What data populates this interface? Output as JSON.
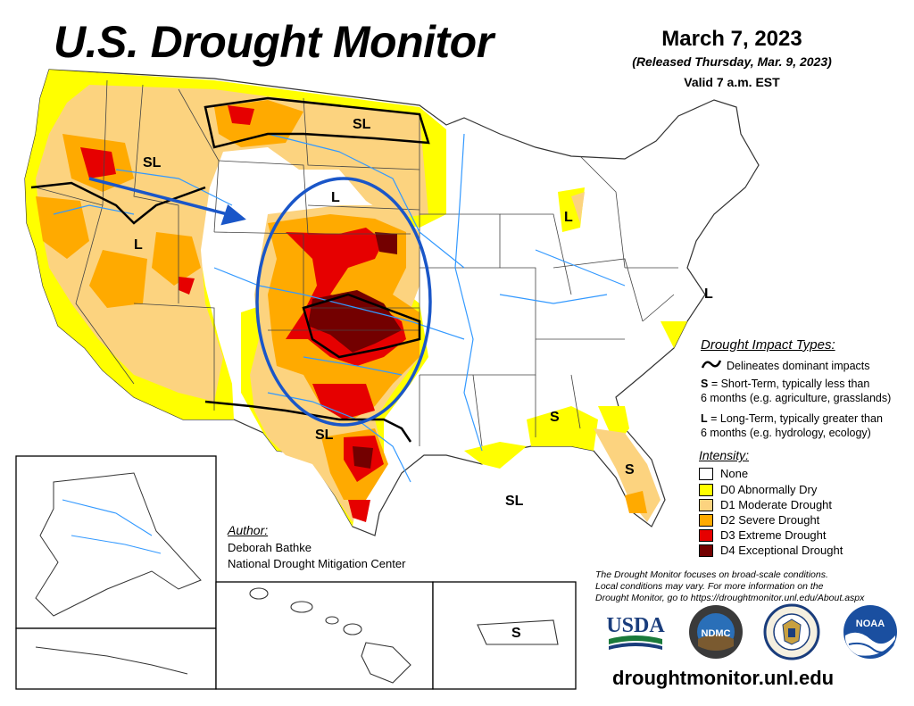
{
  "header": {
    "title": "U.S. Drought Monitor",
    "date": "March 7, 2023",
    "released": "(Released Thursday, Mar. 9, 2023)",
    "valid": "Valid 7 a.m. EST"
  },
  "impact_types": {
    "heading": "Drought Impact Types:",
    "delineates": "Delineates dominant impacts",
    "short_code": "S",
    "short_text": " = Short-Term, typically less than",
    "short_text2": "6 months (e.g. agriculture, grasslands)",
    "long_code": "L",
    "long_text": " = Long-Term, typically greater than",
    "long_text2": "6 months (e.g. hydrology, ecology)"
  },
  "intensity": {
    "heading": "Intensity:",
    "levels": [
      {
        "label": "None",
        "color": "#ffffff"
      },
      {
        "label": "D0 Abnormally Dry",
        "color": "#ffff00"
      },
      {
        "label": "D1 Moderate Drought",
        "color": "#fcd37f"
      },
      {
        "label": "D2 Severe Drought",
        "color": "#ffaa00"
      },
      {
        "label": "D3 Extreme Drought",
        "color": "#e60000"
      },
      {
        "label": "D4 Exceptional Drought",
        "color": "#730000"
      }
    ]
  },
  "author": {
    "heading": "Author:",
    "name": "Deborah Bathke",
    "org": "National Drought Mitigation Center"
  },
  "note": {
    "line1": "The Drought Monitor focuses on broad-scale conditions.",
    "line2": "Local conditions may vary. For more information on the",
    "line3": "Drought Monitor, go to https://droughtmonitor.unl.edu/About.aspx"
  },
  "map_labels": {
    "sl": "SL",
    "l": "L",
    "s": "S"
  },
  "logos": {
    "usda": "USDA",
    "ndmc": "NDMC",
    "noaa": "NOAA"
  },
  "url": "droughtmonitor.unl.edu",
  "colors": {
    "river": "#3399ff",
    "annotation": "#1a56c8"
  }
}
